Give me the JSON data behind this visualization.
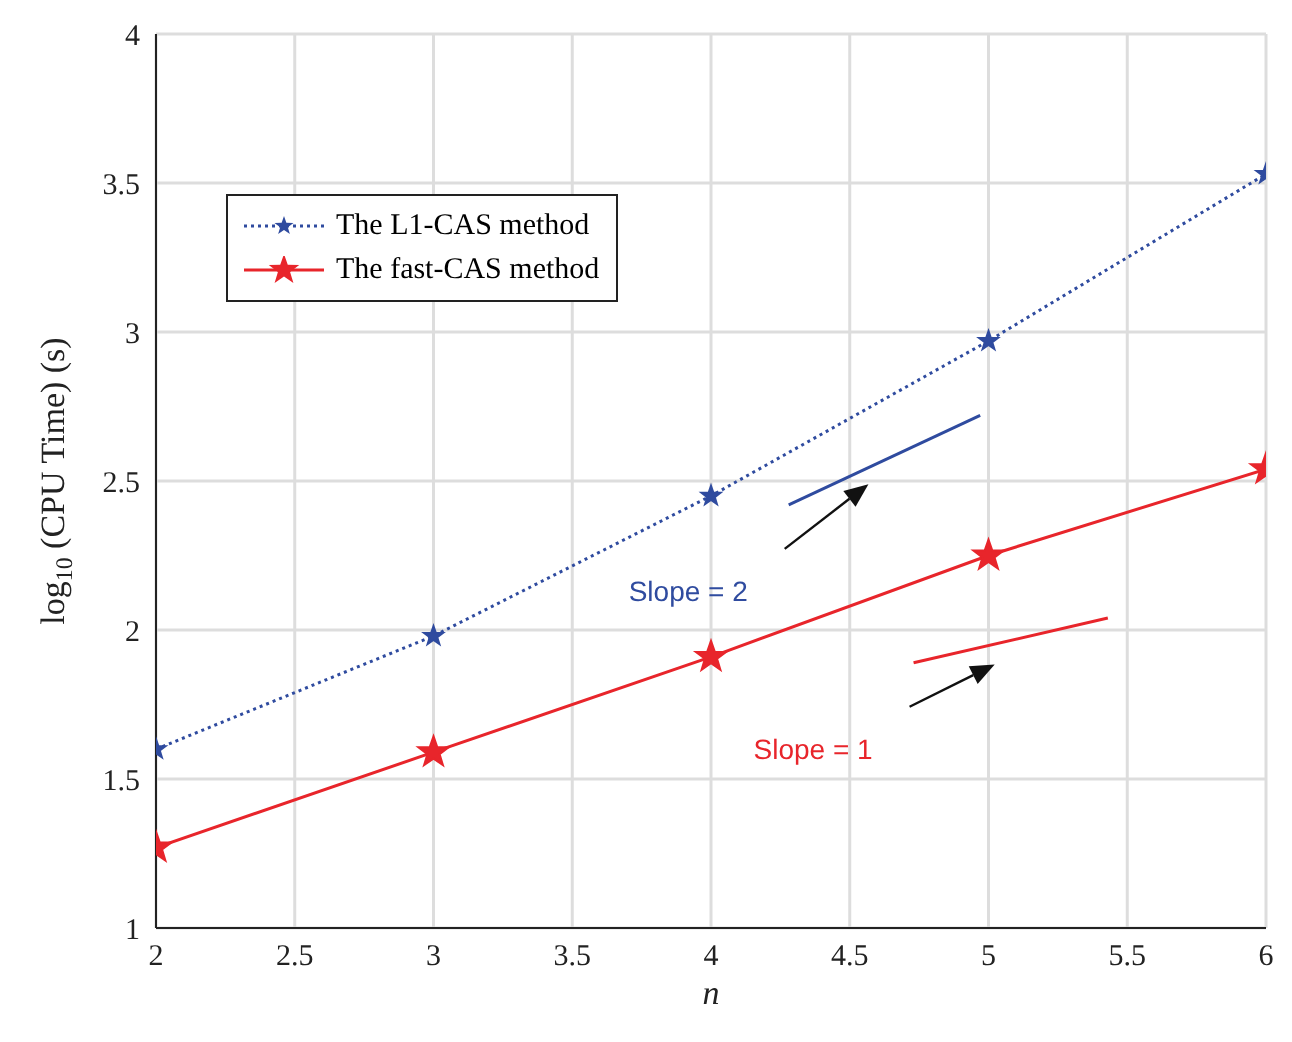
{
  "chart_data": {
    "type": "line",
    "xlabel": "n",
    "ylabel": "log$_{10}$(CPU Time) (s)",
    "x": [
      2,
      3,
      4,
      5,
      6
    ],
    "series": [
      {
        "name": "The L1-CAS method",
        "color": "#2f4b9f",
        "values": [
          1.6,
          1.98,
          2.45,
          2.97,
          3.53
        ],
        "marker": "star",
        "line_style": "dotted"
      },
      {
        "name": "The fast-CAS method",
        "color": "#e8252b",
        "values": [
          1.27,
          1.59,
          1.91,
          2.25,
          2.54
        ],
        "marker": "star",
        "line_style": "solid"
      },
      {
        "color": "#2f4b9f",
        "x": [
          4.28,
          4.97
        ],
        "values": [
          2.42,
          2.72
        ],
        "marker": "none",
        "line_style": "solid"
      },
      {
        "color": "#e8252b",
        "x": [
          4.73,
          5.43
        ],
        "values": [
          1.89,
          2.04
        ],
        "marker": "none",
        "line_style": "solid"
      }
    ],
    "annotations": [
      "Slope = 2",
      "Slope = 1"
    ],
    "xlim": [
      2,
      6
    ],
    "xticks": [
      2,
      2.5,
      3,
      3.5,
      4,
      4.5,
      5,
      5.5,
      6
    ],
    "ylim": [
      1,
      4
    ],
    "yticks": [
      1,
      1.5,
      2,
      2.5,
      3,
      3.5,
      4
    ],
    "grid": true,
    "legend": "top left"
  }
}
